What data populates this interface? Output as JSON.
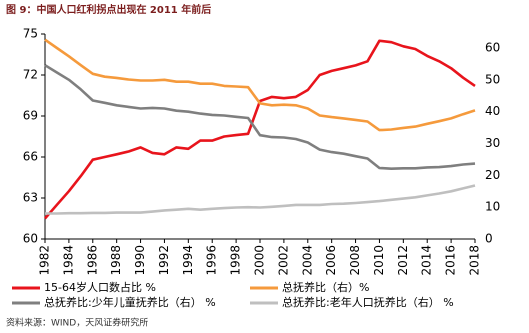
{
  "chart_data": {
    "type": "line",
    "title": "图 9：中国人口红利拐点出现在 2011 年前后",
    "source": "资料来源：WIND，天风证券研究所",
    "x": [
      1982,
      1983,
      1984,
      1985,
      1986,
      1987,
      1988,
      1989,
      1990,
      1991,
      1992,
      1993,
      1994,
      1995,
      1996,
      1997,
      1998,
      1999,
      2000,
      2001,
      2002,
      2003,
      2004,
      2005,
      2006,
      2007,
      2008,
      2009,
      2010,
      2011,
      2012,
      2013,
      2014,
      2015,
      2016,
      2017,
      2018
    ],
    "xlim": [
      1982,
      2018
    ],
    "xticks": [
      1982,
      1984,
      1986,
      1988,
      1990,
      1992,
      1994,
      1996,
      1998,
      2000,
      2002,
      2004,
      2006,
      2008,
      2010,
      2012,
      2014,
      2016,
      2018
    ],
    "ylim": [
      60,
      75
    ],
    "yticks": [
      60,
      63,
      66,
      69,
      72,
      75
    ],
    "y2lim": [
      0,
      64.4
    ],
    "y2ticks": [
      0,
      10,
      20,
      30,
      40,
      50,
      60
    ],
    "series": [
      {
        "name": "15-64岁人口数占比 %",
        "color": "#e8141c",
        "values": [
          61.5,
          62.5,
          63.5,
          64.6,
          65.8,
          66.0,
          66.2,
          66.4,
          66.7,
          66.3,
          66.2,
          66.7,
          66.6,
          67.2,
          67.2,
          67.5,
          67.6,
          67.7,
          70.1,
          70.4,
          70.3,
          70.4,
          70.9,
          72.0,
          72.3,
          72.5,
          72.7,
          73.0,
          74.5,
          74.4,
          74.1,
          73.9,
          73.4,
          73.0,
          72.5,
          71.8,
          71.2
        ]
      },
      {
        "name": "总抚养比（右）%",
        "color": "#f59a3c",
        "axis": "y2",
        "values": [
          62.6,
          60.0,
          57.4,
          54.6,
          51.9,
          51.0,
          50.6,
          50.1,
          49.8,
          49.8,
          50.0,
          49.4,
          49.4,
          48.8,
          48.8,
          48.1,
          47.9,
          47.7,
          42.6,
          42.0,
          42.2,
          42.0,
          41.0,
          38.8,
          38.3,
          37.9,
          37.4,
          36.9,
          34.2,
          34.4,
          34.9,
          35.3,
          36.2,
          37.0,
          37.9,
          39.2,
          40.4
        ]
      },
      {
        "name": "总抚养比:少年儿童抚养比（右） %",
        "color": "#7f7f7f",
        "axis": "y2",
        "values": [
          54.6,
          52.3,
          50.0,
          47.0,
          43.5,
          42.8,
          42.0,
          41.5,
          41.0,
          41.2,
          41.0,
          40.3,
          40.0,
          39.4,
          39.0,
          38.8,
          38.4,
          38.0,
          32.6,
          32.0,
          31.9,
          31.4,
          30.3,
          28.1,
          27.3,
          26.8,
          26.0,
          25.3,
          22.3,
          22.1,
          22.2,
          22.2,
          22.5,
          22.6,
          22.9,
          23.4,
          23.7
        ]
      },
      {
        "name": "总抚养比:老年人口抚养比（右） %",
        "color": "#bfbfbf",
        "axis": "y2",
        "values": [
          8.0,
          8.0,
          8.1,
          8.1,
          8.2,
          8.2,
          8.3,
          8.3,
          8.3,
          8.6,
          9.0,
          9.2,
          9.5,
          9.2,
          9.5,
          9.7,
          9.9,
          10.0,
          9.9,
          10.1,
          10.4,
          10.7,
          10.7,
          10.7,
          11.0,
          11.1,
          11.3,
          11.6,
          11.9,
          12.3,
          12.7,
          13.1,
          13.7,
          14.3,
          15.0,
          15.9,
          16.8
        ]
      }
    ]
  }
}
